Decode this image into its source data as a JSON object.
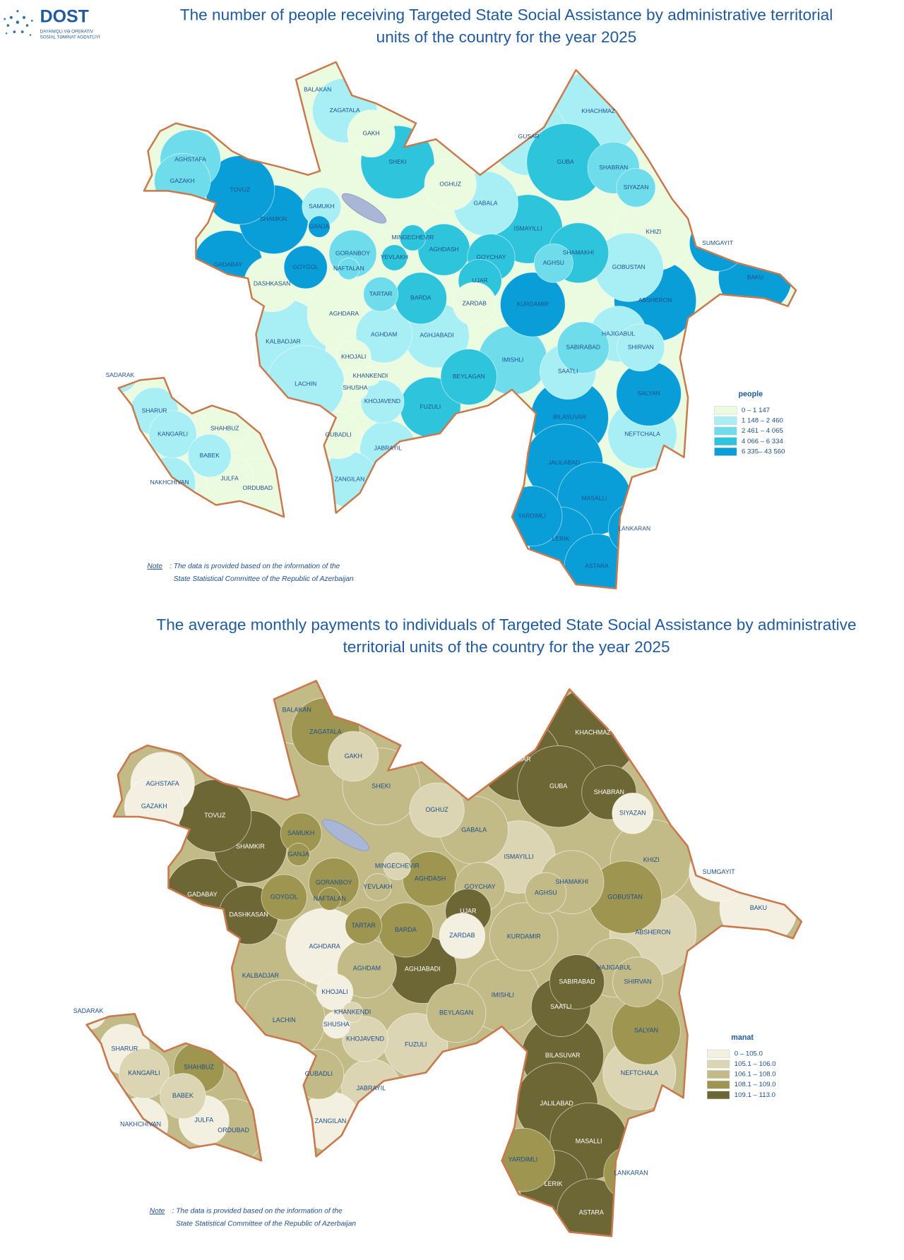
{
  "header": {
    "logo": "DOST",
    "agency_lines": [
      "DAYANIQLI VƏ OPERATİV",
      "SOSİAL TƏMİNAT AGENTLİYİ"
    ]
  },
  "maps": [
    {
      "title_lines": [
        "The number of people receiving Targeted State Social Assistance by administrative territorial",
        "units of the country for the year 2025"
      ],
      "regions": [
        {
          "name": "BALAKAN",
          "color": "#eafbe0"
        },
        {
          "name": "ZAGATALA",
          "color": "#a8eef5"
        },
        {
          "name": "GAKH",
          "color": "#eafbe0"
        },
        {
          "name": "SHEKI",
          "color": "#2ec4dc"
        },
        {
          "name": "OGHUZ",
          "color": "#eafbe0"
        },
        {
          "name": "GABALA",
          "color": "#a8eef5"
        },
        {
          "name": "GUSAR",
          "color": "#a8eef5"
        },
        {
          "name": "KHACHMAZ",
          "color": "#a8eef5"
        },
        {
          "name": "GUBA",
          "color": "#2ec4dc"
        },
        {
          "name": "SHABRAN",
          "color": "#6fdcec"
        },
        {
          "name": "SIYAZAN",
          "color": "#6fdcec"
        },
        {
          "name": "KHIZI",
          "color": "#eafbe0"
        },
        {
          "name": "SUMGAYIT",
          "color": "#0a9ed8"
        },
        {
          "name": "BAKU",
          "color": "#0a9ed8"
        },
        {
          "name": "ABSHERON",
          "color": "#0a9ed8"
        },
        {
          "name": "GOBUSTAN",
          "color": "#a8eef5"
        },
        {
          "name": "SHAMAKHI",
          "color": "#2ec4dc"
        },
        {
          "name": "AGHSU",
          "color": "#6fdcec"
        },
        {
          "name": "ISMAYILLI",
          "color": "#2ec4dc"
        },
        {
          "name": "GOYCHAY",
          "color": "#2ec4dc"
        },
        {
          "name": "UJAR",
          "color": "#2ec4dc"
        },
        {
          "name": "AGHDASH",
          "color": "#2ec4dc"
        },
        {
          "name": "MINGECHEVIR",
          "color": "#2ec4dc"
        },
        {
          "name": "YEVLAKH",
          "color": "#2ec4dc"
        },
        {
          "name": "ZARDAB",
          "color": "#eafbe0"
        },
        {
          "name": "KURDAMIR",
          "color": "#0a9ed8"
        },
        {
          "name": "HAJIGABUL",
          "color": "#a8eef5"
        },
        {
          "name": "SHIRVAN",
          "color": "#a8eef5"
        },
        {
          "name": "SABIRABAD",
          "color": "#6fdcec"
        },
        {
          "name": "SAATLI",
          "color": "#a8eef5"
        },
        {
          "name": "IMISHLI",
          "color": "#6fdcec"
        },
        {
          "name": "SALYAN",
          "color": "#0a9ed8"
        },
        {
          "name": "NEFTCHALA",
          "color": "#a8eef5"
        },
        {
          "name": "BILASUVAR",
          "color": "#0a9ed8"
        },
        {
          "name": "JALILABAD",
          "color": "#0a9ed8"
        },
        {
          "name": "MASALLI",
          "color": "#0a9ed8"
        },
        {
          "name": "LANKARAN",
          "color": "#0a9ed8"
        },
        {
          "name": "YARDIMLI",
          "color": "#0a9ed8"
        },
        {
          "name": "LERIK",
          "color": "#0a9ed8"
        },
        {
          "name": "ASTARA",
          "color": "#0a9ed8"
        },
        {
          "name": "BEYLAGAN",
          "color": "#2ec4dc"
        },
        {
          "name": "FUZULI",
          "color": "#2ec4dc"
        },
        {
          "name": "AGHJABADI",
          "color": "#a8eef5"
        },
        {
          "name": "BARDA",
          "color": "#2ec4dc"
        },
        {
          "name": "AGHDAM",
          "color": "#a8eef5"
        },
        {
          "name": "TARTAR",
          "color": "#6fdcec"
        },
        {
          "name": "AGHDARA",
          "color": "#eafbe0"
        },
        {
          "name": "KALBADJAR",
          "color": "#a8eef5"
        },
        {
          "name": "LACHIN",
          "color": "#a8eef5"
        },
        {
          "name": "KHOJALI",
          "color": "#eafbe0"
        },
        {
          "name": "KHANKENDI",
          "color": "#eafbe0"
        },
        {
          "name": "SHUSHA",
          "color": "#eafbe0"
        },
        {
          "name": "KHOJAVEND",
          "color": "#a8eef5"
        },
        {
          "name": "GUBADLI",
          "color": "#eafbe0"
        },
        {
          "name": "JABRAYIL",
          "color": "#a8eef5"
        },
        {
          "name": "ZANGILAN",
          "color": "#a8eef5"
        },
        {
          "name": "GADABAY",
          "color": "#0a9ed8"
        },
        {
          "name": "DASHKASAN",
          "color": "#eafbe0"
        },
        {
          "name": "GOYGOL",
          "color": "#0a9ed8"
        },
        {
          "name": "GANJA",
          "color": "#0a9ed8"
        },
        {
          "name": "SAMUKH",
          "color": "#a8eef5"
        },
        {
          "name": "SHAMKIR",
          "color": "#0a9ed8"
        },
        {
          "name": "TOVUZ",
          "color": "#0a9ed8"
        },
        {
          "name": "AGHSTAFA",
          "color": "#6fdcec"
        },
        {
          "name": "GAZAKH",
          "color": "#6fdcec"
        },
        {
          "name": "GORANBOY",
          "color": "#6fdcec"
        },
        {
          "name": "NAFTALAN",
          "color": "#6fdcec"
        },
        {
          "name": "SADARAK",
          "color": "#a8eef5"
        },
        {
          "name": "SHARUR",
          "color": "#a8eef5"
        },
        {
          "name": "KANGARLI",
          "color": "#a8eef5"
        },
        {
          "name": "SHAHBUZ",
          "color": "#eafbe0"
        },
        {
          "name": "BABEK",
          "color": "#a8eef5"
        },
        {
          "name": "JULFA",
          "color": "#eafbe0"
        },
        {
          "name": "ORDUBAD",
          "color": "#eafbe0"
        },
        {
          "name": "NAKHCHIVAN",
          "color": "#a8eef5"
        }
      ],
      "legend": {
        "title": "people",
        "items": [
          {
            "label": "0 – 1 147",
            "color": "#eafbe0"
          },
          {
            "label": "1 148 – 2 460",
            "color": "#a8eef5"
          },
          {
            "label": "2 461 – 4 065",
            "color": "#6fdcec"
          },
          {
            "label": "4 066 – 6 334",
            "color": "#2ec4dc"
          },
          {
            "label": "6 335– 43 560",
            "color": "#0a9ed8"
          }
        ]
      },
      "note": {
        "label": "Note",
        "lines": [
          ": The data is provided based on the information of the",
          "State Statistical Committee of the Republic of Azerbaijan"
        ]
      }
    },
    {
      "title_lines": [
        "The average monthly payments to individuals of Targeted State Social Assistance by administrative",
        "territorial units of the country for the year 2025"
      ],
      "regions": [
        {
          "name": "BALAKAN",
          "color": "#c2bb88"
        },
        {
          "name": "ZAGATALA",
          "color": "#9e9650"
        },
        {
          "name": "GAKH",
          "color": "#dcd5b3"
        },
        {
          "name": "SHEKI",
          "color": "#c2bb88"
        },
        {
          "name": "OGHUZ",
          "color": "#dcd5b3"
        },
        {
          "name": "GABALA",
          "color": "#c2bb88"
        },
        {
          "name": "GUSAR",
          "color": "#6c6734"
        },
        {
          "name": "KHACHMAZ",
          "color": "#6c6734"
        },
        {
          "name": "GUBA",
          "color": "#6c6734"
        },
        {
          "name": "SHABRAN",
          "color": "#6c6734"
        },
        {
          "name": "SIYAZAN",
          "color": "#f3f0e2"
        },
        {
          "name": "KHIZI",
          "color": "#c2bb88"
        },
        {
          "name": "SUMGAYIT",
          "color": "#f3f0e2"
        },
        {
          "name": "BAKU",
          "color": "#f3f0e2"
        },
        {
          "name": "ABSHERON",
          "color": "#dcd5b3"
        },
        {
          "name": "GOBUSTAN",
          "color": "#9e9650"
        },
        {
          "name": "SHAMAKHI",
          "color": "#c2bb88"
        },
        {
          "name": "AGHSU",
          "color": "#c2bb88"
        },
        {
          "name": "ISMAYILLI",
          "color": "#dcd5b3"
        },
        {
          "name": "GOYCHAY",
          "color": "#c2bb88"
        },
        {
          "name": "UJAR",
          "color": "#6c6734"
        },
        {
          "name": "AGHDASH",
          "color": "#9e9650"
        },
        {
          "name": "MINGECHEVIR",
          "color": "#dcd5b3"
        },
        {
          "name": "YEVLAKH",
          "color": "#c2bb88"
        },
        {
          "name": "ZARDAB",
          "color": "#f3f0e2"
        },
        {
          "name": "KURDAMIR",
          "color": "#c2bb88"
        },
        {
          "name": "HAJIGABUL",
          "color": "#c2bb88"
        },
        {
          "name": "SHIRVAN",
          "color": "#c2bb88"
        },
        {
          "name": "SABIRABAD",
          "color": "#6c6734"
        },
        {
          "name": "SAATLI",
          "color": "#6c6734"
        },
        {
          "name": "IMISHLI",
          "color": "#c2bb88"
        },
        {
          "name": "SALYAN",
          "color": "#9e9650"
        },
        {
          "name": "NEFTCHALA",
          "color": "#dcd5b3"
        },
        {
          "name": "BILASUVAR",
          "color": "#6c6734"
        },
        {
          "name": "JALILABAD",
          "color": "#6c6734"
        },
        {
          "name": "MASALLI",
          "color": "#6c6734"
        },
        {
          "name": "LANKARAN",
          "color": "#9e9650"
        },
        {
          "name": "YARDIMLI",
          "color": "#9e9650"
        },
        {
          "name": "LERIK",
          "color": "#6c6734"
        },
        {
          "name": "ASTARA",
          "color": "#6c6734"
        },
        {
          "name": "BEYLAGAN",
          "color": "#c2bb88"
        },
        {
          "name": "FUZULI",
          "color": "#dcd5b3"
        },
        {
          "name": "AGHJABADI",
          "color": "#6c6734"
        },
        {
          "name": "BARDA",
          "color": "#9e9650"
        },
        {
          "name": "AGHDAM",
          "color": "#c2bb88"
        },
        {
          "name": "TARTAR",
          "color": "#9e9650"
        },
        {
          "name": "AGHDARA",
          "color": "#f3f0e2"
        },
        {
          "name": "KALBADJAR",
          "color": "#c2bb88"
        },
        {
          "name": "LACHIN",
          "color": "#c2bb88"
        },
        {
          "name": "KHOJALI",
          "color": "#f3f0e2"
        },
        {
          "name": "KHANKENDI",
          "color": "#dcd5b3"
        },
        {
          "name": "SHUSHA",
          "color": "#f3f0e2"
        },
        {
          "name": "KHOJAVEND",
          "color": "#dcd5b3"
        },
        {
          "name": "GUBADLI",
          "color": "#c2bb88"
        },
        {
          "name": "JABRAYIL",
          "color": "#dcd5b3"
        },
        {
          "name": "ZANGILAN",
          "color": "#f3f0e2"
        },
        {
          "name": "GADABAY",
          "color": "#6c6734"
        },
        {
          "name": "DASHKASAN",
          "color": "#6c6734"
        },
        {
          "name": "GOYGOL",
          "color": "#9e9650"
        },
        {
          "name": "GANJA",
          "color": "#9e9650"
        },
        {
          "name": "SAMUKH",
          "color": "#9e9650"
        },
        {
          "name": "SHAMKIR",
          "color": "#6c6734"
        },
        {
          "name": "TOVUZ",
          "color": "#6c6734"
        },
        {
          "name": "AGHSTAFA",
          "color": "#f3f0e2"
        },
        {
          "name": "GAZAKH",
          "color": "#f3f0e2"
        },
        {
          "name": "GORANBOY",
          "color": "#9e9650"
        },
        {
          "name": "NAFTALAN",
          "color": "#9e9650"
        },
        {
          "name": "SADARAK",
          "color": "#f3f0e2"
        },
        {
          "name": "SHARUR",
          "color": "#f3f0e2"
        },
        {
          "name": "KANGARLI",
          "color": "#dcd5b3"
        },
        {
          "name": "SHAHBUZ",
          "color": "#9e9650"
        },
        {
          "name": "BABEK",
          "color": "#dcd5b3"
        },
        {
          "name": "JULFA",
          "color": "#f3f0e2"
        },
        {
          "name": "ORDUBAD",
          "color": "#c2bb88"
        },
        {
          "name": "NAKHCHIVAN",
          "color": "#f3f0e2"
        }
      ],
      "legend": {
        "title": "manat",
        "items": [
          {
            "label": "0 – 105.0",
            "color": "#f3f0e2"
          },
          {
            "label": "105.1 – 106.0",
            "color": "#dcd5b3"
          },
          {
            "label": "106.1 – 108.0",
            "color": "#c2bb88"
          },
          {
            "label": "108.1 – 109.0",
            "color": "#9e9650"
          },
          {
            "label": "109.1 – 113.0",
            "color": "#6c6734"
          }
        ]
      },
      "note": {
        "label": "Note",
        "lines": [
          ": The data is provided based on the information of the",
          "State Statistical Committee of the Republic of Azerbaijan"
        ]
      }
    }
  ]
}
